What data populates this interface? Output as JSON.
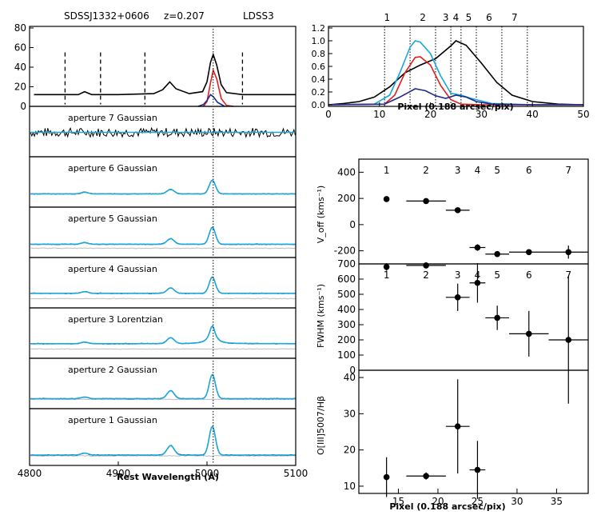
{
  "header": {
    "object": "SDSSJ1332+0606",
    "redshift": "z=0.207",
    "instrument": "LDSS3"
  },
  "colors": {
    "black": "#000000",
    "red": "#e01f1f",
    "cyan": "#1aa7db",
    "navy": "#1c2a8c",
    "gray": "#bdbdbd"
  },
  "chart_data": [
    {
      "id": "spectra",
      "type": "line",
      "xlabel": "Rest Wavelength (Å)",
      "xlim": [
        4800,
        5100
      ],
      "xticks": [
        4800,
        4900,
        5000,
        5100
      ],
      "reference_line_x": 5007,
      "top_panel": {
        "ylim": [
          0,
          80
        ],
        "yticks": [
          0,
          20,
          40,
          60,
          80
        ],
        "aperture_boundaries_dashed": [
          4840,
          4880,
          4930,
          5040
        ],
        "components": [
          {
            "color": "black",
            "points": [
              [
                4805,
                12
              ],
              [
                4830,
                12
              ],
              [
                4855,
                12
              ],
              [
                4862,
                15
              ],
              [
                4870,
                12
              ],
              [
                4900,
                12
              ],
              [
                4940,
                13
              ],
              [
                4950,
                17
              ],
              [
                4958,
                25
              ],
              [
                4965,
                18
              ],
              [
                4980,
                13
              ],
              [
                4995,
                15
              ],
              [
                5000,
                25
              ],
              [
                5004,
                45
              ],
              [
                5007,
                53
              ],
              [
                5011,
                42
              ],
              [
                5016,
                22
              ],
              [
                5022,
                14
              ],
              [
                5040,
                12
              ],
              [
                5100,
                12
              ]
            ]
          },
          {
            "color": "red",
            "points": [
              [
                4996,
                0
              ],
              [
                5000,
                5
              ],
              [
                5004,
                24
              ],
              [
                5007,
                37
              ],
              [
                5011,
                28
              ],
              [
                5016,
                8
              ],
              [
                5022,
                1
              ],
              [
                5030,
                0
              ]
            ]
          },
          {
            "color": "navy",
            "points": [
              [
                4990,
                0
              ],
              [
                4996,
                2
              ],
              [
                5000,
                6
              ],
              [
                5004,
                12
              ],
              [
                5007,
                10
              ],
              [
                5012,
                4
              ],
              [
                5020,
                0
              ]
            ]
          }
        ]
      },
      "apertures": [
        {
          "label": "aperture 7  Gaussian",
          "model": "noisy"
        },
        {
          "label": "aperture 6  Gaussian",
          "model": "gauss",
          "peak": 0.42,
          "base": 0.16
        },
        {
          "label": "aperture 5  Gaussian",
          "model": "gauss",
          "peak": 0.52,
          "base": 0.16
        },
        {
          "label": "aperture 4  Gaussian",
          "model": "gauss",
          "peak": 0.5,
          "base": 0.2
        },
        {
          "label": "aperture 3  Lorentzian",
          "model": "lorentz",
          "peak": 0.55,
          "base": 0.2
        },
        {
          "label": "aperture 2  Gaussian",
          "model": "gauss",
          "peak": 0.74,
          "base": 0.06
        },
        {
          "label": "aperture 1  Gaussian",
          "model": "gauss",
          "peak": 0.74,
          "base": 0.06
        }
      ]
    },
    {
      "id": "profile",
      "type": "line",
      "xlabel": "Pixel (0.188 arcsec/pix)",
      "xlim": [
        0,
        50
      ],
      "xticks": [
        0,
        10,
        20,
        30,
        40,
        50
      ],
      "ylim": [
        0,
        1.2
      ],
      "yticks": [
        0.0,
        0.2,
        0.4,
        0.6,
        0.8,
        1.0,
        1.2
      ],
      "aperture_numbers": [
        "1",
        "2",
        "3",
        "4",
        "5",
        "6",
        "7"
      ],
      "aperture_number_x": [
        11.5,
        18.5,
        23,
        25,
        27.5,
        31.5,
        36.5
      ],
      "aperture_boundaries": [
        11,
        16,
        21,
        24,
        26,
        29,
        34,
        39
      ],
      "series": [
        {
          "color": "black",
          "points": [
            [
              0,
              0
            ],
            [
              3,
              0.02
            ],
            [
              6,
              0.05
            ],
            [
              9,
              0.12
            ],
            [
              12,
              0.28
            ],
            [
              15,
              0.5
            ],
            [
              18,
              0.62
            ],
            [
              21,
              0.72
            ],
            [
              24,
              0.92
            ],
            [
              25,
              1.0
            ],
            [
              27,
              0.93
            ],
            [
              30,
              0.65
            ],
            [
              33,
              0.35
            ],
            [
              36,
              0.15
            ],
            [
              40,
              0.05
            ],
            [
              45,
              0.01
            ],
            [
              50,
              0
            ]
          ]
        },
        {
          "color": "cyan",
          "points": [
            [
              0,
              0
            ],
            [
              9,
              0.01
            ],
            [
              12,
              0.15
            ],
            [
              14,
              0.5
            ],
            [
              16,
              0.9
            ],
            [
              17,
              1.0
            ],
            [
              18,
              0.98
            ],
            [
              20,
              0.8
            ],
            [
              22,
              0.45
            ],
            [
              24,
              0.18
            ],
            [
              26,
              0.15
            ],
            [
              28,
              0.1
            ],
            [
              32,
              0.02
            ],
            [
              40,
              0.0
            ],
            [
              50,
              0
            ]
          ]
        },
        {
          "color": "red",
          "points": [
            [
              0,
              0
            ],
            [
              11,
              0.01
            ],
            [
              13,
              0.15
            ],
            [
              15,
              0.5
            ],
            [
              17,
              0.74
            ],
            [
              18,
              0.75
            ],
            [
              20,
              0.62
            ],
            [
              22,
              0.3
            ],
            [
              24,
              0.08
            ],
            [
              26,
              0.01
            ],
            [
              30,
              0
            ],
            [
              50,
              0
            ]
          ]
        },
        {
          "color": "navy",
          "points": [
            [
              0,
              0
            ],
            [
              11,
              0.01
            ],
            [
              14,
              0.12
            ],
            [
              17,
              0.25
            ],
            [
              19,
              0.22
            ],
            [
              21,
              0.14
            ],
            [
              23,
              0.1
            ],
            [
              25,
              0.15
            ],
            [
              27,
              0.12
            ],
            [
              29,
              0.05
            ],
            [
              32,
              0.01
            ],
            [
              40,
              0
            ],
            [
              50,
              0
            ]
          ]
        }
      ]
    },
    {
      "id": "voff",
      "type": "scatter",
      "ylabel": "V_off (kms⁻¹)",
      "xlim": [
        10,
        39
      ],
      "ylim": [
        -300,
        500
      ],
      "yticks": [
        -200,
        0,
        200,
        400
      ],
      "aperture_numbers": [
        "1",
        "2",
        "3",
        "4",
        "5",
        "6",
        "7"
      ],
      "points": [
        {
          "x": 13.5,
          "y": 195,
          "xerr": 0,
          "yerr": 12
        },
        {
          "x": 18.5,
          "y": 180,
          "xerr": 2.5,
          "yerr": 12
        },
        {
          "x": 22.5,
          "y": 110,
          "xerr": 1.5,
          "yerr": 15
        },
        {
          "x": 25,
          "y": -175,
          "xerr": 1,
          "yerr": 25
        },
        {
          "x": 27.5,
          "y": -225,
          "xerr": 1.5,
          "yerr": 20
        },
        {
          "x": 31.5,
          "y": -210,
          "xerr": 2.5,
          "yerr": 15
        },
        {
          "x": 36.5,
          "y": -210,
          "xerr": 2.5,
          "yerr": 50
        }
      ]
    },
    {
      "id": "fwhm",
      "type": "scatter",
      "ylabel": "FWHM (kms⁻¹)",
      "xlim": [
        10,
        39
      ],
      "ylim": [
        0,
        700
      ],
      "yticks": [
        0,
        100,
        200,
        300,
        400,
        500,
        600,
        700
      ],
      "aperture_numbers": [
        "1",
        "2",
        "3",
        "4",
        "5",
        "6",
        "7"
      ],
      "points": [
        {
          "x": 13.5,
          "y": 680,
          "xerr": 0,
          "yerr": 25
        },
        {
          "x": 18.5,
          "y": 690,
          "xerr": 2.5,
          "yerr": 20
        },
        {
          "x": 22.5,
          "y": 480,
          "xerr": 1.5,
          "yerr": 90
        },
        {
          "x": 25,
          "y": 575,
          "xerr": 1,
          "yerr": 130
        },
        {
          "x": 27.5,
          "y": 345,
          "xerr": 1.5,
          "yerr": 80
        },
        {
          "x": 31.5,
          "y": 240,
          "xerr": 2.5,
          "yerr": 150
        },
        {
          "x": 36.5,
          "y": 200,
          "xerr": 2.5,
          "yerr": 420
        }
      ]
    },
    {
      "id": "ratio",
      "type": "scatter",
      "ylabel": "O[III]5007/Hβ",
      "xlabel": "Pixel (0.188 arcsec/pix)",
      "xlim": [
        10,
        39
      ],
      "xticks": [
        15,
        20,
        25,
        30,
        35
      ],
      "ylim": [
        8,
        42
      ],
      "yticks": [
        10,
        20,
        30,
        40
      ],
      "points": [
        {
          "x": 13.5,
          "y": 12.5,
          "xerr": 0,
          "yerr": 5.5
        },
        {
          "x": 18.5,
          "y": 12.8,
          "xerr": 2.5,
          "yerr": 1
        },
        {
          "x": 22.5,
          "y": 26.5,
          "xerr": 1.5,
          "yerr": 13
        },
        {
          "x": 25,
          "y": 14.5,
          "xerr": 1,
          "yerr": 8
        }
      ]
    }
  ]
}
